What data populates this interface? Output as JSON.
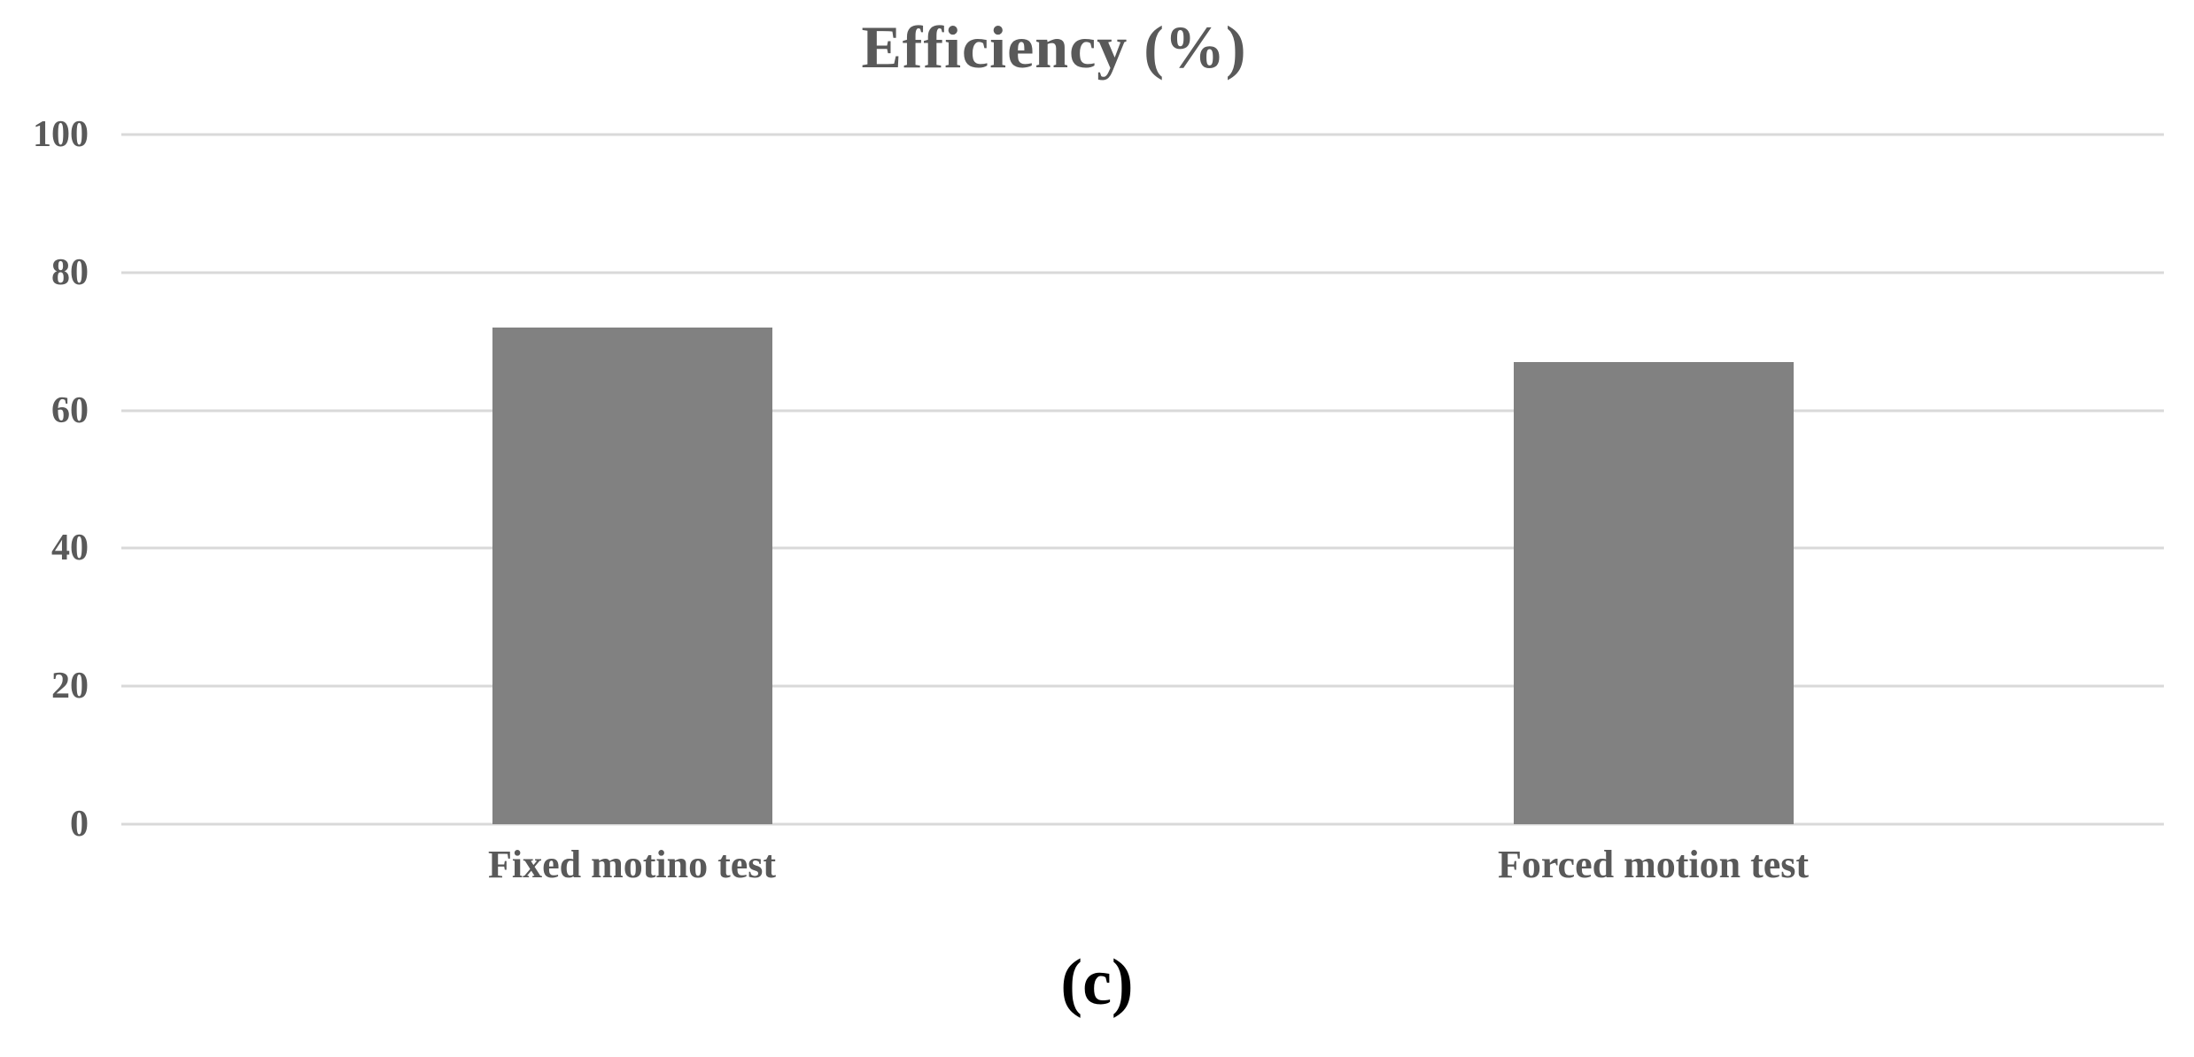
{
  "chart_data": {
    "type": "bar",
    "title": "Efficiency (%)",
    "categories": [
      "Fixed motino test",
      "Forced motion test"
    ],
    "values": [
      72,
      67
    ],
    "xlabel": "",
    "ylabel": "",
    "ylim": [
      0,
      100
    ],
    "yticks": [
      0,
      20,
      40,
      60,
      80,
      100
    ],
    "grid": true,
    "legend": "none",
    "bar_color": "#818181",
    "gridline_color": "#d9d9d9",
    "text_color": "#595959"
  },
  "caption": "(c)"
}
